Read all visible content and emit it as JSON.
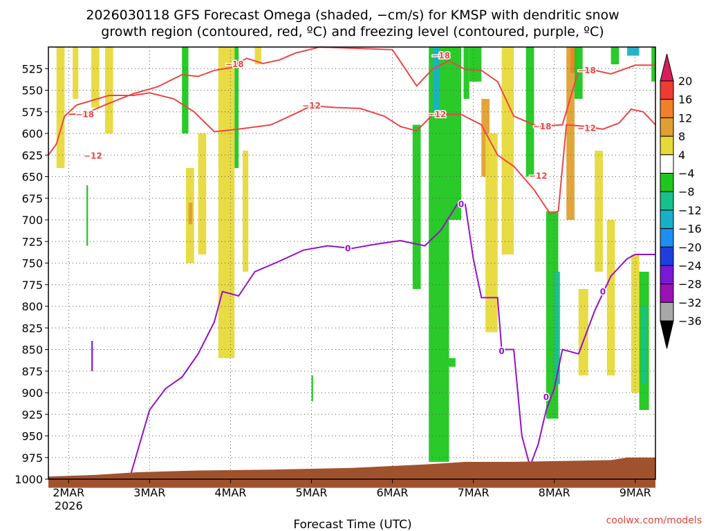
{
  "chart_data": {
    "type": "heatmap",
    "title_line1": "2026030118 GFS Forecast Omega (shaded, −cm/s) for KMSP with dendritic snow",
    "title_line2": "growth region (contoured, red, ºC) and freezing level (contoured, purple, ºC)",
    "xlabel": "Forecast Time (UTC)",
    "credit": "coolwx.com/models",
    "x_ticks": [
      "2MAR",
      "3MAR",
      "4MAR",
      "5MAR",
      "6MAR",
      "7MAR",
      "8MAR",
      "9MAR"
    ],
    "x_tick_year": "2026",
    "x_range_days": [
      1.75,
      9.25
    ],
    "y_ticks": [
      "525",
      "550",
      "575",
      "600",
      "625",
      "650",
      "675",
      "700",
      "725",
      "750",
      "775",
      "800",
      "825",
      "850",
      "875",
      "900",
      "925",
      "950",
      "975",
      "1000"
    ],
    "y_range_hpa": [
      500,
      1000
    ],
    "colorbar": {
      "labels": [
        "20",
        "16",
        "12",
        "8",
        "4",
        "−4",
        "−8",
        "−12",
        "−16",
        "−20",
        "−24",
        "−28",
        "−32",
        "−36"
      ],
      "colors": [
        "#d81e5b",
        "#ee3c31",
        "#f0812a",
        "#e0a030",
        "#e8d93a",
        "#ffffff",
        "#1ec71e",
        "#18c08c",
        "#18b0c8",
        "#1e8ff0",
        "#1e3ee0",
        "#7a18d8",
        "#9c10b8",
        "#a8a8a8",
        "#000000"
      ]
    },
    "series": [
      {
        "name": "-12 °C isotherm",
        "color": "#ee4444",
        "points": [
          [
            1.75,
            625
          ],
          [
            1.85,
            612
          ],
          [
            1.95,
            580
          ],
          [
            2.1,
            567
          ],
          [
            2.5,
            556
          ],
          [
            2.8,
            556
          ],
          [
            3.0,
            553
          ],
          [
            3.3,
            560
          ],
          [
            3.55,
            575
          ],
          [
            3.8,
            598
          ],
          [
            4.1,
            595
          ],
          [
            4.5,
            590
          ],
          [
            4.8,
            577
          ],
          [
            5.0,
            568
          ],
          [
            5.3,
            570
          ],
          [
            5.6,
            571
          ],
          [
            5.9,
            580
          ],
          [
            6.1,
            592
          ],
          [
            6.3,
            597
          ],
          [
            6.5,
            578
          ],
          [
            6.7,
            578
          ],
          [
            6.85,
            578
          ],
          [
            7.1,
            590
          ],
          [
            7.3,
            625
          ],
          [
            7.5,
            638
          ],
          [
            7.75,
            665
          ],
          [
            7.95,
            693
          ],
          [
            8.05,
            690
          ],
          [
            8.15,
            590
          ],
          [
            8.4,
            592
          ],
          [
            8.6,
            595
          ],
          [
            8.8,
            588
          ],
          [
            8.95,
            572
          ],
          [
            9.1,
            575
          ],
          [
            9.25,
            590
          ]
        ],
        "labels": [
          {
            "text": "−12",
            "x": 2.3,
            "p": 626
          },
          {
            "text": "−12",
            "x": 5.0,
            "p": 568
          },
          {
            "text": "−12",
            "x": 6.55,
            "p": 578
          },
          {
            "text": "−12",
            "x": 7.8,
            "p": 649
          },
          {
            "text": "−12",
            "x": 8.4,
            "p": 594
          }
        ]
      },
      {
        "name": "-18 °C isotherm",
        "color": "#ee4444",
        "points": [
          [
            2.0,
            578
          ],
          [
            2.2,
            577
          ],
          [
            2.5,
            565
          ],
          [
            2.8,
            554
          ],
          [
            3.1,
            546
          ],
          [
            3.4,
            532
          ],
          [
            3.6,
            534
          ],
          [
            3.8,
            527
          ],
          [
            4.0,
            524
          ],
          [
            4.2,
            513
          ],
          [
            4.4,
            519
          ],
          [
            4.6,
            515
          ],
          [
            4.8,
            507
          ],
          [
            5.1,
            500
          ],
          [
            6.0,
            503
          ],
          [
            6.3,
            545
          ],
          [
            6.5,
            525
          ],
          [
            6.7,
            516
          ],
          [
            6.9,
            526
          ],
          [
            7.1,
            527
          ],
          [
            7.3,
            540
          ],
          [
            7.5,
            580
          ],
          [
            7.8,
            592
          ],
          [
            8.1,
            590
          ],
          [
            8.3,
            527
          ],
          [
            8.5,
            527
          ],
          [
            8.7,
            531
          ],
          [
            9.0,
            521
          ],
          [
            9.25,
            521
          ]
        ],
        "labels": [
          {
            "text": "−18",
            "x": 2.2,
            "p": 578
          },
          {
            "text": "−18",
            "x": 4.05,
            "p": 520
          },
          {
            "text": "−18",
            "x": 6.6,
            "p": 510
          },
          {
            "text": "−18",
            "x": 7.85,
            "p": 592
          },
          {
            "text": "−18",
            "x": 8.4,
            "p": 527
          }
        ]
      },
      {
        "name": "0 °C freezing level",
        "color": "#9410c8",
        "points": [
          [
            2.75,
            1000
          ],
          [
            3.0,
            920
          ],
          [
            3.2,
            895
          ],
          [
            3.4,
            882
          ],
          [
            3.6,
            855
          ],
          [
            3.8,
            818
          ],
          [
            3.9,
            783
          ],
          [
            4.1,
            788
          ],
          [
            4.3,
            760
          ],
          [
            4.6,
            748
          ],
          [
            4.9,
            735
          ],
          [
            5.2,
            730
          ],
          [
            5.5,
            733
          ],
          [
            5.8,
            728
          ],
          [
            6.1,
            724
          ],
          [
            6.4,
            730
          ],
          [
            6.6,
            712
          ],
          [
            6.8,
            682
          ],
          [
            6.9,
            682
          ],
          [
            7.0,
            745
          ],
          [
            7.1,
            790
          ],
          [
            7.3,
            790
          ],
          [
            7.35,
            850
          ],
          [
            7.5,
            850
          ],
          [
            7.6,
            950
          ],
          [
            7.7,
            985
          ],
          [
            7.8,
            960
          ],
          [
            7.9,
            920
          ],
          [
            8.0,
            895
          ],
          [
            8.1,
            850
          ],
          [
            8.3,
            855
          ],
          [
            8.5,
            805
          ],
          [
            8.7,
            765
          ],
          [
            8.9,
            745
          ],
          [
            9.0,
            740
          ],
          [
            9.25,
            740
          ]
        ],
        "labels": [
          {
            "text": "0",
            "x": 5.45,
            "p": 733
          },
          {
            "text": "0",
            "x": 6.85,
            "p": 682
          },
          {
            "text": "0",
            "x": 7.35,
            "p": 852
          },
          {
            "text": "0",
            "x": 7.9,
            "p": 905
          },
          {
            "text": "0",
            "x": 8.6,
            "p": 783
          }
        ]
      }
    ]
  }
}
